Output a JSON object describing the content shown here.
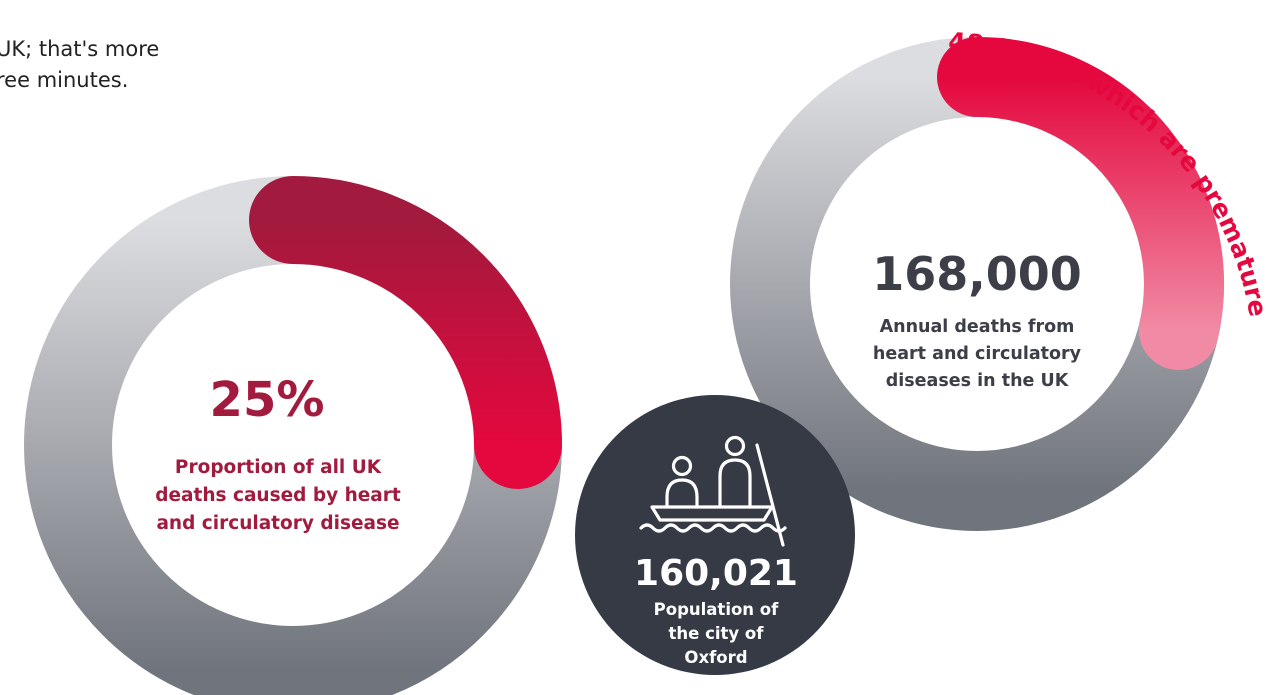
{
  "intro": {
    "line1": "UK; that's more",
    "line2": "ree minutes."
  },
  "colors": {
    "ring_grey_light": "#dcdde0",
    "ring_grey_dark": "#70747c",
    "crimson_dark": "#a21a3d",
    "crimson_bright": "#e4083e",
    "pink_light": "#f18aa4",
    "red_text": "#e4083e",
    "maroon_text": "#a21a3d",
    "charcoal": "#3c3f47",
    "navy_circle": "#353a45",
    "white": "#ffffff"
  },
  "icons": {
    "boat": "punt-boat-icon"
  },
  "chart_data": [
    {
      "type": "donut",
      "highlight_percent": 25,
      "value_label": "25%",
      "caption": [
        "Proportion of all UK",
        "deaths caused by heart",
        "and circulatory disease"
      ]
    },
    {
      "type": "donut",
      "total": 168000,
      "highlight": 48000,
      "value_label": "168,000",
      "caption": [
        "Annual deaths from",
        "heart and circulatory",
        "diseases in the UK"
      ],
      "arc_label": "48,000 of which are premature"
    },
    {
      "type": "stat",
      "value_label": "160,021",
      "caption": [
        "Population of",
        "the city of",
        "Oxford"
      ]
    }
  ]
}
